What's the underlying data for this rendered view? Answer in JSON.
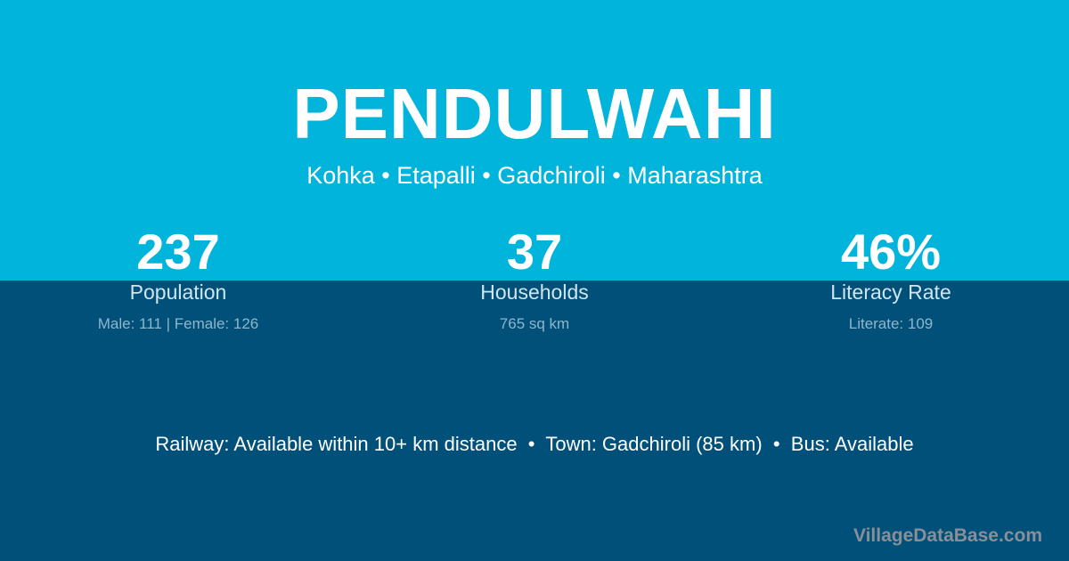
{
  "title": "PENDULWAHI",
  "location": "Kohka • Etapalli • Gadchiroli • Maharashtra",
  "stats": [
    {
      "value": "237",
      "label": "Population",
      "note": "Male: 111 | Female: 126"
    },
    {
      "value": "37",
      "label": "Households",
      "note": "765 sq km"
    },
    {
      "value": "46%",
      "label": "Literacy Rate",
      "note": "Literate: 109"
    }
  ],
  "info": "Railway: Available within 10+ km distance  •  Town: Gadchiroli (85 km)  •  Bus: Available",
  "watermark": "VillageDataBase.com",
  "colors": {
    "top": "#00b4dc",
    "bottom": "#00507a",
    "watermark": "#888f96"
  }
}
